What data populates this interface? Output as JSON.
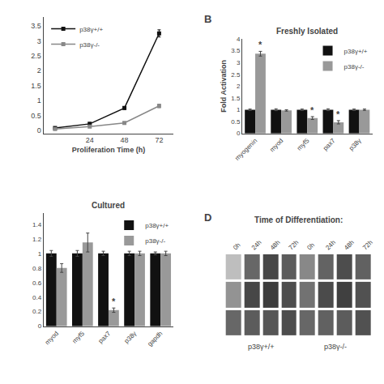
{
  "chart_data": [
    {
      "type": "line",
      "xlabel": "Proliferation Time (h)",
      "x": [
        0,
        24,
        48,
        72
      ],
      "series": [
        {
          "name": "p38γ+/+",
          "color": "#111111",
          "marker": "square",
          "values": [
            0.08,
            0.22,
            0.75,
            3.25
          ],
          "error": [
            0.0,
            0.03,
            0.05,
            0.12
          ]
        },
        {
          "name": "p38γ-/-",
          "color": "#888888",
          "marker": "square",
          "values": [
            0.05,
            0.13,
            0.25,
            0.82
          ],
          "error": [
            0.0,
            0.02,
            0.03,
            0.06
          ]
        }
      ],
      "xlim": [
        -8,
        82
      ],
      "xticks": [
        24,
        48,
        72
      ],
      "ylim": [
        -0.1,
        3.8
      ],
      "yticks": [
        0,
        0.5,
        1,
        1.5,
        2,
        2.5,
        3,
        3.5
      ],
      "grid": false,
      "legend": "upper left"
    },
    {
      "type": "bar",
      "panel_label": "B",
      "title": "Freshly Isolated",
      "ylabel": "Fold Activation",
      "categories": [
        "myogenin",
        "myod",
        "myf5",
        "pax7",
        "p38γ"
      ],
      "series": [
        {
          "name": "p38γ+/+",
          "color": "#111111",
          "values": [
            1.0,
            1.0,
            1.0,
            1.0,
            1.0
          ],
          "error": [
            0.03,
            0.04,
            0.03,
            0.04,
            0.03
          ]
        },
        {
          "name": "p38γ-/-",
          "color": "#999999",
          "values": [
            3.37,
            0.97,
            0.65,
            0.47,
            1.0
          ],
          "error": [
            0.1,
            0.03,
            0.06,
            0.07,
            0.03
          ]
        }
      ],
      "annotations": [
        {
          "category": "myogenin",
          "series": "p38γ-/-",
          "text": "*"
        },
        {
          "category": "myf5",
          "series": "p38γ-/-",
          "text": "*"
        },
        {
          "category": "pax7",
          "series": "p38γ-/-",
          "text": "*"
        }
      ],
      "ylim": [
        0,
        4.0
      ],
      "yticks": [
        0.0,
        0.5,
        1.0,
        1.5,
        2.0,
        2.5,
        3.0,
        3.5,
        4.0
      ],
      "grid": false,
      "legend": "upper right"
    },
    {
      "type": "bar",
      "title": "Cultured",
      "categories": [
        "myod",
        "myf5",
        "pax7",
        "p38γ",
        "gapdh"
      ],
      "series": [
        {
          "name": "p38γ+/+",
          "color": "#111111",
          "values": [
            1.0,
            1.0,
            1.0,
            1.0,
            1.0
          ],
          "error": [
            0.04,
            0.04,
            0.03,
            0.03,
            0.02
          ]
        },
        {
          "name": "p38γ-/-",
          "color": "#999999",
          "values": [
            0.8,
            1.15,
            0.22,
            1.0,
            1.0
          ],
          "error": [
            0.06,
            0.13,
            0.03,
            0.03,
            0.03
          ]
        }
      ],
      "annotations": [
        {
          "category": "pax7",
          "series": "p38γ-/-",
          "text": "*"
        }
      ],
      "ylim": [
        0,
        1.55
      ],
      "yticks": [
        0,
        0.2,
        0.4,
        0.6,
        0.8,
        1.0,
        1.2,
        1.4
      ],
      "grid": false,
      "legend": "upper right"
    },
    {
      "type": "heatmap",
      "panel_label": "D",
      "title": "Time of Differentiation:",
      "categories": [
        "0h",
        "24h",
        "48h",
        "72h",
        "0h",
        "24h",
        "48h",
        "72h"
      ],
      "z": [
        [
          0.3,
          0.7,
          0.85,
          0.75,
          0.55,
          0.72,
          0.82,
          0.73
        ],
        [
          0.5,
          0.85,
          0.9,
          0.82,
          0.65,
          0.83,
          0.88,
          0.8
        ],
        [
          0.7,
          0.75,
          0.78,
          0.82,
          0.7,
          0.73,
          0.75,
          0.8
        ]
      ],
      "zlim": [
        0,
        1
      ],
      "group_labels": [
        "p38γ+/+",
        "p38γ-/-"
      ],
      "tick_labels": "x",
      "grid": false
    }
  ]
}
